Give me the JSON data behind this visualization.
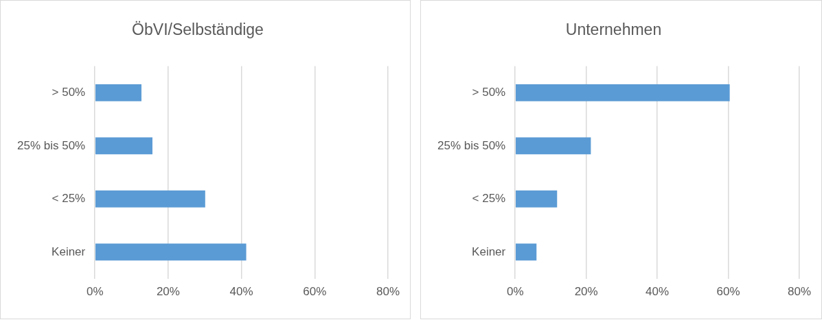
{
  "chart_data": [
    {
      "type": "bar",
      "title": "ÖbVI/Selbständige",
      "orientation": "horizontal",
      "categories": [
        "> 50%",
        "25% bis 50%",
        "< 25%",
        "Keiner"
      ],
      "values": [
        12.7,
        15.7,
        30.1,
        41.3
      ],
      "color": "#5b9bd5",
      "xlim": [
        0,
        80
      ],
      "xticks": [
        {
          "value": 0,
          "label": "0%"
        },
        {
          "value": 20,
          "label": "20%"
        },
        {
          "value": 40,
          "label": "40%"
        },
        {
          "value": 60,
          "label": "60%"
        },
        {
          "value": 80,
          "label": "80%"
        }
      ],
      "grid": "x"
    },
    {
      "type": "bar",
      "title": "Unternehmen",
      "orientation": "horizontal",
      "categories": [
        "> 50%",
        "25% bis 50%",
        "< 25%",
        "Keiner"
      ],
      "values": [
        60.4,
        21.3,
        11.8,
        6.0
      ],
      "color": "#5b9bd5",
      "xlim": [
        0,
        80
      ],
      "xticks": [
        {
          "value": 0,
          "label": "0%"
        },
        {
          "value": 20,
          "label": "20%"
        },
        {
          "value": 40,
          "label": "40%"
        },
        {
          "value": 60,
          "label": "60%"
        },
        {
          "value": 80,
          "label": "80%"
        }
      ],
      "grid": "x"
    }
  ]
}
